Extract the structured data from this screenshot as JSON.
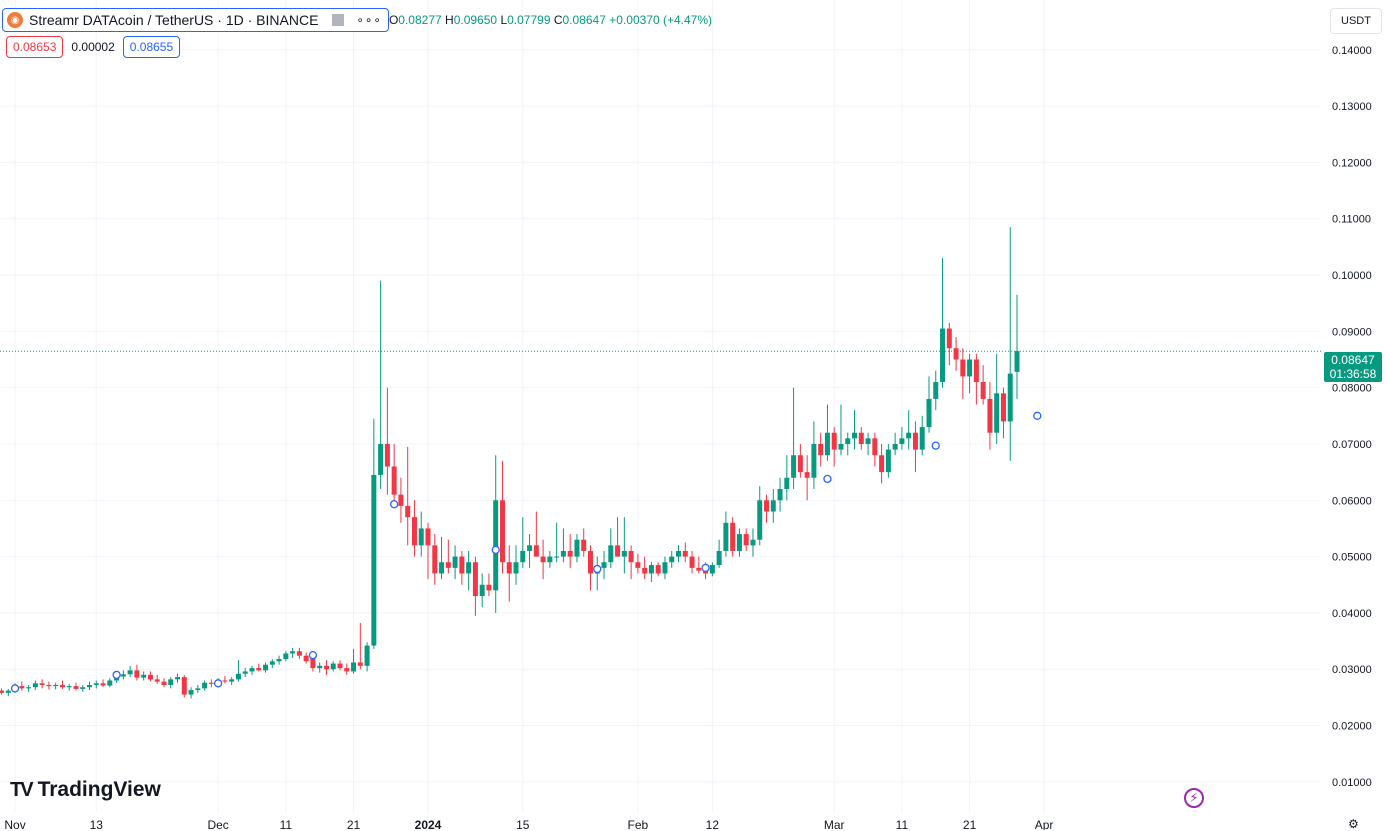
{
  "header": {
    "symbol_title": "Streamr DATAcoin / TetherUS · 1D · BINANCE",
    "more_label": "∘∘∘",
    "ohlc": {
      "open_label": "O",
      "open": "0.08277",
      "high_label": "H",
      "high": "0.09650",
      "low_label": "L",
      "low": "0.07799",
      "close_label": "C",
      "close": "0.08647",
      "change": "+0.00370 (+4.47%)"
    }
  },
  "quote": {
    "bid": "0.08653",
    "spread": "0.00002",
    "ask": "0.08655"
  },
  "currency_button": "USDT",
  "last_price": {
    "price": "0.08647",
    "countdown": "01:36:58"
  },
  "brand": {
    "logo": "TV",
    "name": "TradingView"
  },
  "colors": {
    "up": "#089981",
    "down": "#f23645",
    "grid": "#f0f3fa",
    "accent": "#2962ff",
    "event": "#9c27b0"
  },
  "icons": {
    "coin": "streamr-coin-icon",
    "flag": "flag-icon",
    "lightning": "lightning-icon",
    "settings": "gear-icon"
  },
  "chart_data": {
    "type": "candlestick",
    "x_start_date": "2023-10-30",
    "ylim": [
      0.005,
      0.146
    ],
    "y_ticks": [
      "0.01000",
      "0.02000",
      "0.03000",
      "0.04000",
      "0.05000",
      "0.06000",
      "0.07000",
      "0.08000",
      "0.09000",
      "0.10000",
      "0.11000",
      "0.12000",
      "0.13000",
      "0.14000"
    ],
    "x_ticks": [
      {
        "label": "Nov",
        "date": "2023-11-01"
      },
      {
        "label": "13",
        "date": "2023-11-13"
      },
      {
        "label": "Dec",
        "date": "2023-12-01"
      },
      {
        "label": "11",
        "date": "2023-12-11"
      },
      {
        "label": "21",
        "date": "2023-12-21"
      },
      {
        "label": "2024",
        "date": "2024-01-01"
      },
      {
        "label": "15",
        "date": "2024-01-15"
      },
      {
        "label": "Feb",
        "date": "2024-02-01"
      },
      {
        "label": "12",
        "date": "2024-02-12"
      },
      {
        "label": "Mar",
        "date": "2024-03-01"
      },
      {
        "label": "11",
        "date": "2024-03-11"
      },
      {
        "label": "21",
        "date": "2024-03-21"
      },
      {
        "label": "Apr",
        "date": "2024-04-01"
      }
    ],
    "last_price_line": 0.08647,
    "candles": [
      [
        0.0262,
        0.0266,
        0.0255,
        0.0258
      ],
      [
        0.0258,
        0.0265,
        0.0252,
        0.0262
      ],
      [
        0.0262,
        0.0275,
        0.0258,
        0.027
      ],
      [
        0.027,
        0.0278,
        0.0262,
        0.0266
      ],
      [
        0.0266,
        0.0272,
        0.026,
        0.0268
      ],
      [
        0.0268,
        0.028,
        0.0263,
        0.0275
      ],
      [
        0.0275,
        0.0282,
        0.0266,
        0.0272
      ],
      [
        0.0272,
        0.0278,
        0.0264,
        0.027
      ],
      [
        0.027,
        0.0276,
        0.0264,
        0.0272
      ],
      [
        0.0272,
        0.028,
        0.0265,
        0.0268
      ],
      [
        0.0268,
        0.0274,
        0.0262,
        0.027
      ],
      [
        0.027,
        0.0276,
        0.0262,
        0.0265
      ],
      [
        0.0265,
        0.0272,
        0.026,
        0.0268
      ],
      [
        0.0268,
        0.0278,
        0.0263,
        0.0272
      ],
      [
        0.0272,
        0.028,
        0.0266,
        0.0275
      ],
      [
        0.0275,
        0.0282,
        0.0268,
        0.0271
      ],
      [
        0.0271,
        0.0284,
        0.0268,
        0.028
      ],
      [
        0.028,
        0.0292,
        0.0276,
        0.0287
      ],
      [
        0.0287,
        0.0298,
        0.0282,
        0.0291
      ],
      [
        0.0291,
        0.0306,
        0.0286,
        0.0298
      ],
      [
        0.0298,
        0.0308,
        0.028,
        0.0285
      ],
      [
        0.0285,
        0.0296,
        0.028,
        0.029
      ],
      [
        0.029,
        0.0296,
        0.0278,
        0.0282
      ],
      [
        0.0282,
        0.029,
        0.0274,
        0.0278
      ],
      [
        0.0278,
        0.0284,
        0.0268,
        0.0272
      ],
      [
        0.0272,
        0.0286,
        0.0266,
        0.0282
      ],
      [
        0.0282,
        0.0292,
        0.0276,
        0.0286
      ],
      [
        0.0286,
        0.029,
        0.025,
        0.0255
      ],
      [
        0.0255,
        0.0268,
        0.0248,
        0.0263
      ],
      [
        0.0263,
        0.0272,
        0.0258,
        0.0266
      ],
      [
        0.0266,
        0.028,
        0.0262,
        0.0276
      ],
      [
        0.0276,
        0.0282,
        0.0268,
        0.0274
      ],
      [
        0.0274,
        0.0284,
        0.027,
        0.028
      ],
      [
        0.028,
        0.0288,
        0.0275,
        0.0278
      ],
      [
        0.0278,
        0.0286,
        0.0272,
        0.0282
      ],
      [
        0.0282,
        0.0316,
        0.0278,
        0.0292
      ],
      [
        0.0292,
        0.0302,
        0.0286,
        0.0296
      ],
      [
        0.0296,
        0.0306,
        0.029,
        0.0302
      ],
      [
        0.0302,
        0.031,
        0.0296,
        0.0298
      ],
      [
        0.0298,
        0.0312,
        0.0294,
        0.0308
      ],
      [
        0.0308,
        0.0318,
        0.0302,
        0.0314
      ],
      [
        0.0314,
        0.0324,
        0.0308,
        0.0318
      ],
      [
        0.0318,
        0.0332,
        0.0314,
        0.0328
      ],
      [
        0.0328,
        0.0338,
        0.032,
        0.0332
      ],
      [
        0.0332,
        0.0338,
        0.0318,
        0.0324
      ],
      [
        0.0324,
        0.033,
        0.031,
        0.0314
      ],
      [
        0.0322,
        0.033,
        0.0296,
        0.0302
      ],
      [
        0.0302,
        0.0312,
        0.0294,
        0.0306
      ],
      [
        0.0306,
        0.0316,
        0.029,
        0.03
      ],
      [
        0.03,
        0.0314,
        0.0296,
        0.031
      ],
      [
        0.031,
        0.0316,
        0.0298,
        0.0302
      ],
      [
        0.0302,
        0.031,
        0.029,
        0.0296
      ],
      [
        0.0296,
        0.0336,
        0.0292,
        0.0312
      ],
      [
        0.0312,
        0.0382,
        0.03,
        0.0306
      ],
      [
        0.0306,
        0.0348,
        0.0296,
        0.0342
      ],
      [
        0.0342,
        0.0745,
        0.0336,
        0.0645
      ],
      [
        0.0645,
        0.099,
        0.062,
        0.07
      ],
      [
        0.07,
        0.08,
        0.061,
        0.066
      ],
      [
        0.066,
        0.07,
        0.059,
        0.061
      ],
      [
        0.061,
        0.064,
        0.056,
        0.059
      ],
      [
        0.059,
        0.0695,
        0.052,
        0.057
      ],
      [
        0.057,
        0.06,
        0.05,
        0.052
      ],
      [
        0.052,
        0.058,
        0.05,
        0.055
      ],
      [
        0.055,
        0.056,
        0.046,
        0.052
      ],
      [
        0.052,
        0.054,
        0.045,
        0.047
      ],
      [
        0.047,
        0.0535,
        0.046,
        0.049
      ],
      [
        0.049,
        0.053,
        0.047,
        0.048
      ],
      [
        0.048,
        0.052,
        0.046,
        0.05
      ],
      [
        0.05,
        0.051,
        0.045,
        0.047
      ],
      [
        0.047,
        0.051,
        0.044,
        0.049
      ],
      [
        0.049,
        0.05,
        0.0395,
        0.043
      ],
      [
        0.043,
        0.047,
        0.041,
        0.045
      ],
      [
        0.045,
        0.047,
        0.043,
        0.044
      ],
      [
        0.044,
        0.068,
        0.04,
        0.06
      ],
      [
        0.06,
        0.067,
        0.047,
        0.049
      ],
      [
        0.049,
        0.052,
        0.042,
        0.047
      ],
      [
        0.047,
        0.052,
        0.045,
        0.049
      ],
      [
        0.049,
        0.057,
        0.048,
        0.051
      ],
      [
        0.051,
        0.054,
        0.048,
        0.052
      ],
      [
        0.052,
        0.058,
        0.05,
        0.05
      ],
      [
        0.05,
        0.053,
        0.046,
        0.049
      ],
      [
        0.049,
        0.051,
        0.048,
        0.05
      ],
      [
        0.05,
        0.056,
        0.049,
        0.05
      ],
      [
        0.05,
        0.055,
        0.049,
        0.051
      ],
      [
        0.051,
        0.054,
        0.048,
        0.05
      ],
      [
        0.05,
        0.054,
        0.049,
        0.053
      ],
      [
        0.053,
        0.055,
        0.05,
        0.051
      ],
      [
        0.051,
        0.052,
        0.044,
        0.047
      ],
      [
        0.047,
        0.05,
        0.044,
        0.048
      ],
      [
        0.048,
        0.051,
        0.046,
        0.049
      ],
      [
        0.049,
        0.055,
        0.048,
        0.052
      ],
      [
        0.052,
        0.057,
        0.05,
        0.05
      ],
      [
        0.05,
        0.057,
        0.047,
        0.051
      ],
      [
        0.051,
        0.052,
        0.046,
        0.049
      ],
      [
        0.049,
        0.0505,
        0.047,
        0.048
      ],
      [
        0.048,
        0.05,
        0.046,
        0.047
      ],
      [
        0.047,
        0.049,
        0.0455,
        0.0485
      ],
      [
        0.0485,
        0.049,
        0.0465,
        0.047
      ],
      [
        0.047,
        0.05,
        0.046,
        0.049
      ],
      [
        0.049,
        0.051,
        0.048,
        0.05
      ],
      [
        0.05,
        0.052,
        0.049,
        0.051
      ],
      [
        0.051,
        0.0525,
        0.049,
        0.05
      ],
      [
        0.05,
        0.051,
        0.047,
        0.048
      ],
      [
        0.048,
        0.05,
        0.047,
        0.0475
      ],
      [
        0.0475,
        0.049,
        0.046,
        0.047
      ],
      [
        0.047,
        0.049,
        0.0465,
        0.0485
      ],
      [
        0.0485,
        0.053,
        0.048,
        0.051
      ],
      [
        0.051,
        0.058,
        0.05,
        0.056
      ],
      [
        0.056,
        0.057,
        0.05,
        0.051
      ],
      [
        0.051,
        0.055,
        0.05,
        0.054
      ],
      [
        0.054,
        0.055,
        0.051,
        0.052
      ],
      [
        0.052,
        0.055,
        0.05,
        0.053
      ],
      [
        0.053,
        0.0625,
        0.052,
        0.06
      ],
      [
        0.06,
        0.061,
        0.056,
        0.058
      ],
      [
        0.058,
        0.062,
        0.056,
        0.06
      ],
      [
        0.06,
        0.064,
        0.058,
        0.062
      ],
      [
        0.062,
        0.068,
        0.06,
        0.064
      ],
      [
        0.064,
        0.08,
        0.062,
        0.068
      ],
      [
        0.068,
        0.07,
        0.064,
        0.065
      ],
      [
        0.065,
        0.068,
        0.06,
        0.064
      ],
      [
        0.064,
        0.074,
        0.062,
        0.07
      ],
      [
        0.07,
        0.072,
        0.066,
        0.068
      ],
      [
        0.068,
        0.077,
        0.067,
        0.072
      ],
      [
        0.072,
        0.073,
        0.066,
        0.069
      ],
      [
        0.069,
        0.077,
        0.068,
        0.07
      ],
      [
        0.07,
        0.072,
        0.068,
        0.071
      ],
      [
        0.071,
        0.076,
        0.069,
        0.072
      ],
      [
        0.072,
        0.073,
        0.069,
        0.07
      ],
      [
        0.07,
        0.072,
        0.068,
        0.071
      ],
      [
        0.071,
        0.072,
        0.066,
        0.068
      ],
      [
        0.068,
        0.07,
        0.063,
        0.065
      ],
      [
        0.065,
        0.07,
        0.064,
        0.069
      ],
      [
        0.069,
        0.072,
        0.068,
        0.07
      ],
      [
        0.07,
        0.073,
        0.069,
        0.071
      ],
      [
        0.071,
        0.076,
        0.069,
        0.072
      ],
      [
        0.072,
        0.074,
        0.065,
        0.069
      ],
      [
        0.069,
        0.075,
        0.068,
        0.073
      ],
      [
        0.073,
        0.082,
        0.072,
        0.078
      ],
      [
        0.078,
        0.083,
        0.076,
        0.081
      ],
      [
        0.081,
        0.103,
        0.08,
        0.0905
      ],
      [
        0.0905,
        0.0915,
        0.084,
        0.087
      ],
      [
        0.087,
        0.089,
        0.083,
        0.085
      ],
      [
        0.085,
        0.087,
        0.078,
        0.082
      ],
      [
        0.082,
        0.086,
        0.079,
        0.085
      ],
      [
        0.085,
        0.086,
        0.077,
        0.081
      ],
      [
        0.081,
        0.084,
        0.077,
        0.078
      ],
      [
        0.078,
        0.081,
        0.069,
        0.072
      ],
      [
        0.072,
        0.086,
        0.07,
        0.079
      ],
      [
        0.079,
        0.08,
        0.071,
        0.074
      ],
      [
        0.074,
        0.1085,
        0.067,
        0.0825
      ],
      [
        0.0828,
        0.0965,
        0.078,
        0.0865
      ]
    ],
    "event_markers": [
      {
        "index": 2,
        "price": 0.0266
      },
      {
        "index": 17,
        "price": 0.029
      },
      {
        "index": 32,
        "price": 0.0275
      },
      {
        "index": 46,
        "price": 0.0325
      },
      {
        "index": 58,
        "price": 0.0593
      },
      {
        "index": 73,
        "price": 0.0512
      },
      {
        "index": 88,
        "price": 0.0478
      },
      {
        "index": 104,
        "price": 0.048
      },
      {
        "index": 122,
        "price": 0.0638
      },
      {
        "index": 138,
        "price": 0.0697
      },
      {
        "index": 153,
        "price": 0.075
      }
    ]
  }
}
